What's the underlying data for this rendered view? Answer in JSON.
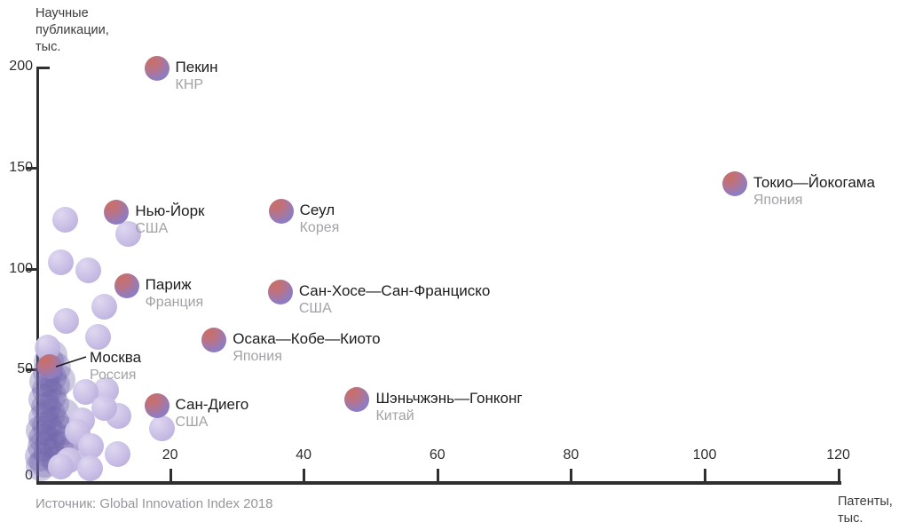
{
  "chart_data": {
    "type": "scatter",
    "title": "",
    "ylabel": "Научные публикации, тыс.",
    "ylabel_lines": [
      "Научные",
      "публикации,",
      "тыс."
    ],
    "xlabel": "Патенты, тыс.",
    "xlabel_lines": [
      "Патенты,",
      "тыс."
    ],
    "source": "Источник: Global Innovation Index 2018",
    "xlim": [
      0,
      120
    ],
    "ylim": [
      0,
      200
    ],
    "xticks": [
      20,
      40,
      60,
      80,
      100,
      120
    ],
    "yticks": [
      0,
      50,
      100,
      150,
      200
    ],
    "grid": false,
    "legend": "none",
    "labeled_points": [
      {
        "city": "Пекин",
        "country": "КНР",
        "x": 18,
        "y": 199,
        "label_position": "right"
      },
      {
        "city": "Токио—Йокогама",
        "country": "Япония",
        "x": 104.5,
        "y": 142,
        "label_position": "right"
      },
      {
        "city": "Нью-Йорк",
        "country": "США",
        "x": 12,
        "y": 128,
        "label_position": "right"
      },
      {
        "city": "Сеул",
        "country": "Корея",
        "x": 36.6,
        "y": 128.5,
        "label_position": "right"
      },
      {
        "city": "Париж",
        "country": "Франция",
        "x": 13.5,
        "y": 91.5,
        "label_position": "right"
      },
      {
        "city": "Сан-Хосе—Сан-Франциско",
        "country": "США",
        "x": 36.5,
        "y": 88.5,
        "label_position": "right"
      },
      {
        "city": "Осака—Кобе—Киото",
        "country": "Япония",
        "x": 26.6,
        "y": 64.5,
        "label_position": "right"
      },
      {
        "city": "Москва",
        "country": "Россия",
        "x": 2,
        "y": 51.5,
        "label_position": "leader"
      },
      {
        "city": "Сан-Диего",
        "country": "США",
        "x": 18,
        "y": 32,
        "label_position": "right"
      },
      {
        "city": "Шэньчжэнь—Гонконг",
        "country": "Китай",
        "x": 48,
        "y": 35,
        "label_position": "right"
      }
    ],
    "unlabeled_points": [
      {
        "x": 4.3,
        "y": 124
      },
      {
        "x": 13.7,
        "y": 117
      },
      {
        "x": 3.6,
        "y": 103
      },
      {
        "x": 7.8,
        "y": 99
      },
      {
        "x": 10.1,
        "y": 81
      },
      {
        "x": 4.5,
        "y": 74
      },
      {
        "x": 9.2,
        "y": 66
      },
      {
        "x": 1.6,
        "y": 61
      },
      {
        "x": 10.4,
        "y": 40
      },
      {
        "x": 7.4,
        "y": 39
      },
      {
        "x": 12.3,
        "y": 27
      },
      {
        "x": 10.2,
        "y": 31
      },
      {
        "x": 6.8,
        "y": 25
      },
      {
        "x": 18.8,
        "y": 21
      },
      {
        "x": 6.2,
        "y": 19
      },
      {
        "x": 8.2,
        "y": 12
      },
      {
        "x": 12.2,
        "y": 8
      },
      {
        "x": 4.8,
        "y": 5
      },
      {
        "x": 8.1,
        "y": 1
      },
      {
        "x": 3.6,
        "y": 2
      }
    ],
    "cluster_points": [
      {
        "x": 0.6,
        "y": 2
      },
      {
        "x": 1.2,
        "y": 4
      },
      {
        "x": 0.5,
        "y": 7
      },
      {
        "x": 1.8,
        "y": 9
      },
      {
        "x": 0.9,
        "y": 12
      },
      {
        "x": 2.0,
        "y": 14
      },
      {
        "x": 1.1,
        "y": 16
      },
      {
        "x": 2.4,
        "y": 18
      },
      {
        "x": 0.7,
        "y": 20
      },
      {
        "x": 1.6,
        "y": 22
      },
      {
        "x": 2.6,
        "y": 24
      },
      {
        "x": 1.0,
        "y": 26
      },
      {
        "x": 2.1,
        "y": 28
      },
      {
        "x": 1.4,
        "y": 31
      },
      {
        "x": 2.7,
        "y": 33
      },
      {
        "x": 1.1,
        "y": 35
      },
      {
        "x": 2.2,
        "y": 37
      },
      {
        "x": 1.6,
        "y": 40
      },
      {
        "x": 2.8,
        "y": 42
      },
      {
        "x": 1.2,
        "y": 44
      },
      {
        "x": 2.3,
        "y": 46
      },
      {
        "x": 1.7,
        "y": 49
      },
      {
        "x": 2.9,
        "y": 51
      },
      {
        "x": 1.9,
        "y": 54
      },
      {
        "x": 2.4,
        "y": 57
      },
      {
        "x": 3.3,
        "y": 12
      },
      {
        "x": 3.8,
        "y": 20
      },
      {
        "x": 4.2,
        "y": 28
      },
      {
        "x": 3.6,
        "y": 45
      },
      {
        "x": 4.6,
        "y": 15
      },
      {
        "x": 5.1,
        "y": 9
      },
      {
        "x": 3.1,
        "y": 5
      }
    ]
  },
  "colors": {
    "bubble_coral": "#c96f66",
    "bubble_purple": "#8d7cc1",
    "bubble_light": "#c6bbe4",
    "axis": "#2f2f2f",
    "text_dark": "#1c1c1c",
    "text_muted": "#a2a2a7",
    "source_gray": "#95959b"
  }
}
